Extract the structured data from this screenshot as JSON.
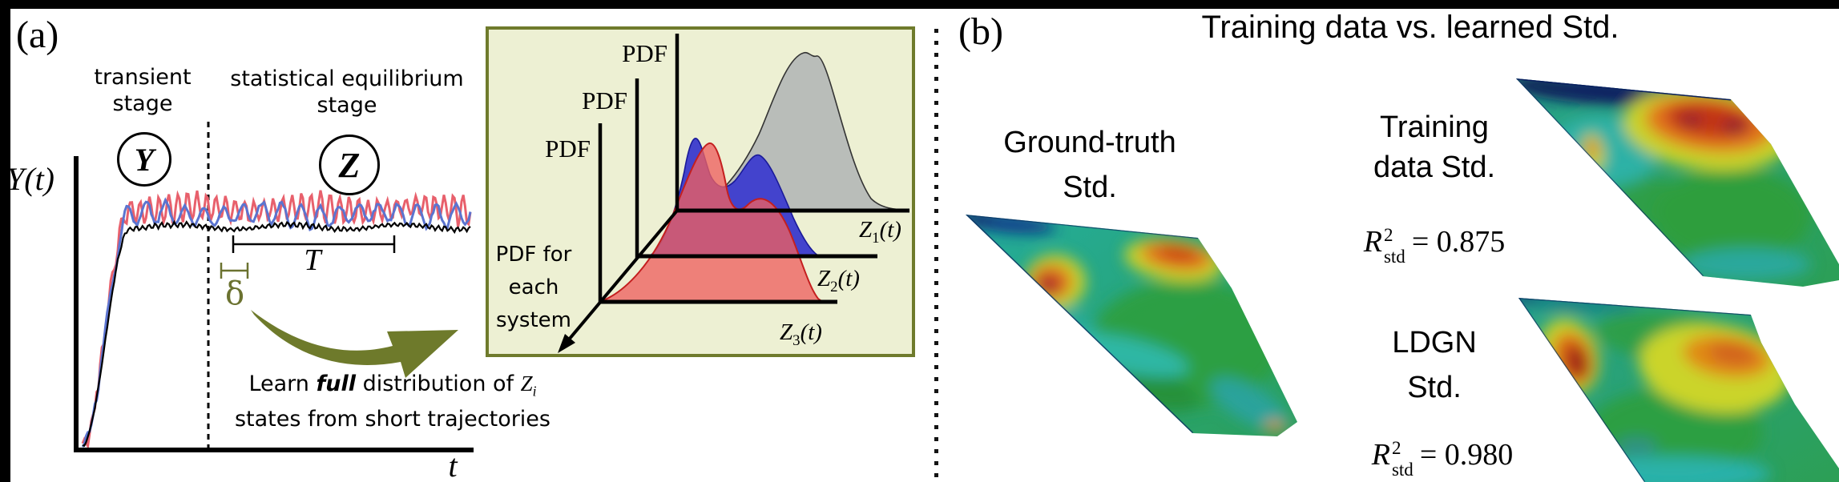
{
  "figure": {
    "panel_a": {
      "label": "(a)",
      "transient_stage": {
        "line1": "transient",
        "line2": "stage",
        "symbol": "Y"
      },
      "equilibrium_stage": {
        "line1": "statistical equilibrium",
        "line2": "stage",
        "symbol": "Z"
      },
      "y_axis_label": "Y(t)",
      "x_axis_label": "t",
      "window_label": "T",
      "delta_label": "δ",
      "caption": {
        "pre": "Learn ",
        "bold": "full",
        "mid": " distribution of ",
        "symbol": "Z",
        "symbol_sub": "i",
        "line2": "states from short trajectories"
      },
      "inset": {
        "pdf_axis_labels": [
          "PDF",
          "PDF",
          "PDF"
        ],
        "side_label": [
          "PDF for",
          "each",
          "system"
        ],
        "z_labels": [
          {
            "base": "Z",
            "sub": "1",
            "arg": "(t)"
          },
          {
            "base": "Z",
            "sub": "2",
            "arg": "(t)"
          },
          {
            "base": "Z",
            "sub": "3",
            "arg": "(t)"
          }
        ]
      }
    },
    "panel_b": {
      "label": "(b)",
      "title": "Training data vs. learned Std.",
      "items": [
        {
          "label_line1": "Ground-truth",
          "label_line2": "Std."
        },
        {
          "label_line1": "Training",
          "label_line2": "data Std.",
          "metric": {
            "symbol": "R",
            "sup": "2",
            "sub": "std",
            "rel": "=",
            "value": "0.875"
          }
        },
        {
          "label_line1": "LDGN",
          "label_line2": "Std.",
          "metric": {
            "symbol": "R",
            "sup": "2",
            "sub": "std",
            "rel": "=",
            "value": "0.980"
          }
        }
      ]
    },
    "colors": {
      "inset_bg": "#edf0d3",
      "inset_border": "#6f7b2c",
      "arrow_olive": "#6e7a2b",
      "delta_olive": "#6b7230",
      "trajectory_red": "#e8606c",
      "trajectory_blue": "#5b74d0",
      "trajectory_black": "#000000",
      "pdf_gray": "#b9bdb9",
      "pdf_blue": "#4343cd",
      "pdf_red": "#ee6060"
    }
  }
}
